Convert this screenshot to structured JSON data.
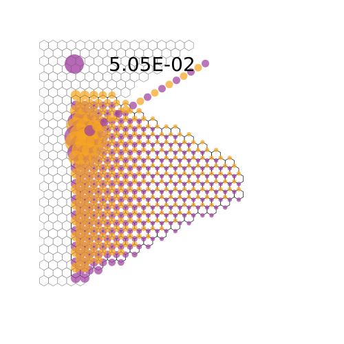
{
  "figure": {
    "annotation_value": "5.05E-02"
  },
  "colors": {
    "background": "#ffffff",
    "orange_site": "#f5a623",
    "purple_site": "#a0419e",
    "lattice_dark": "#111111",
    "lattice_light": "#888888"
  }
}
